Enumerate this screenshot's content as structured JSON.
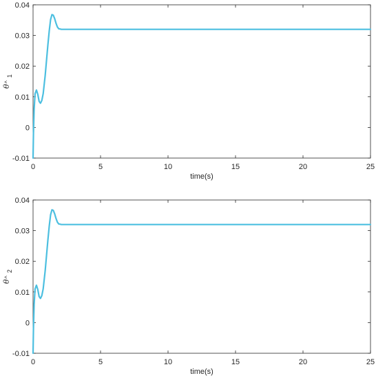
{
  "chart_data": [
    {
      "type": "line",
      "xlabel": "time(s)",
      "ylabel": {
        "symbol": "θ",
        "hat": "^",
        "subscript": "1"
      },
      "xlim": [
        0,
        25
      ],
      "ylim": [
        -0.01,
        0.04
      ],
      "xticks": [
        0,
        5,
        10,
        15,
        20,
        25
      ],
      "yticks": [
        -0.01,
        0,
        0.01,
        0.02,
        0.03,
        0.04
      ],
      "xtick_labels": [
        "0",
        "5",
        "10",
        "15",
        "20",
        "25"
      ],
      "ytick_labels": [
        "-0.01",
        "0",
        "0.01",
        "0.02",
        "0.03",
        "0.04"
      ],
      "grid": false,
      "series": [
        {
          "color": "#4cbfe0",
          "x": [
            0,
            0.03,
            0.08,
            0.15,
            0.25,
            0.35,
            0.45,
            0.55,
            0.65,
            0.75,
            0.9,
            1.0,
            1.1,
            1.2,
            1.3,
            1.4,
            1.5,
            1.6,
            1.7,
            1.8,
            1.9,
            2.0,
            2.1,
            2.2,
            2.4,
            3,
            5,
            10,
            15,
            20,
            25
          ],
          "y": [
            -0.01,
            -0.002,
            0.006,
            0.011,
            0.0122,
            0.0108,
            0.0085,
            0.0079,
            0.0088,
            0.011,
            0.017,
            0.022,
            0.027,
            0.0315,
            0.0352,
            0.0368,
            0.0366,
            0.0355,
            0.034,
            0.0328,
            0.0322,
            0.0321,
            0.032,
            0.032,
            0.032,
            0.032,
            0.032,
            0.032,
            0.032,
            0.032,
            0.032
          ]
        }
      ]
    },
    {
      "type": "line",
      "xlabel": "time(s)",
      "ylabel": {
        "symbol": "θ",
        "hat": "^",
        "subscript": "2"
      },
      "xlim": [
        0,
        25
      ],
      "ylim": [
        -0.01,
        0.04
      ],
      "xticks": [
        0,
        5,
        10,
        15,
        20,
        25
      ],
      "yticks": [
        -0.01,
        0,
        0.01,
        0.02,
        0.03,
        0.04
      ],
      "xtick_labels": [
        "0",
        "5",
        "10",
        "15",
        "20",
        "25"
      ],
      "ytick_labels": [
        "-0.01",
        "0",
        "0.01",
        "0.02",
        "0.03",
        "0.04"
      ],
      "grid": false,
      "series": [
        {
          "color": "#4cbfe0",
          "x": [
            0,
            0.03,
            0.08,
            0.15,
            0.25,
            0.35,
            0.45,
            0.55,
            0.65,
            0.75,
            0.9,
            1.0,
            1.1,
            1.2,
            1.3,
            1.4,
            1.5,
            1.6,
            1.7,
            1.8,
            1.9,
            2.0,
            2.1,
            2.2,
            2.4,
            3,
            5,
            10,
            15,
            20,
            25
          ],
          "y": [
            -0.01,
            -0.002,
            0.006,
            0.011,
            0.0122,
            0.0108,
            0.0085,
            0.0079,
            0.0088,
            0.011,
            0.017,
            0.022,
            0.027,
            0.0315,
            0.0352,
            0.0368,
            0.0366,
            0.0355,
            0.034,
            0.0328,
            0.0322,
            0.0321,
            0.032,
            0.032,
            0.032,
            0.032,
            0.032,
            0.032,
            0.032,
            0.032,
            0.032
          ]
        }
      ]
    }
  ]
}
